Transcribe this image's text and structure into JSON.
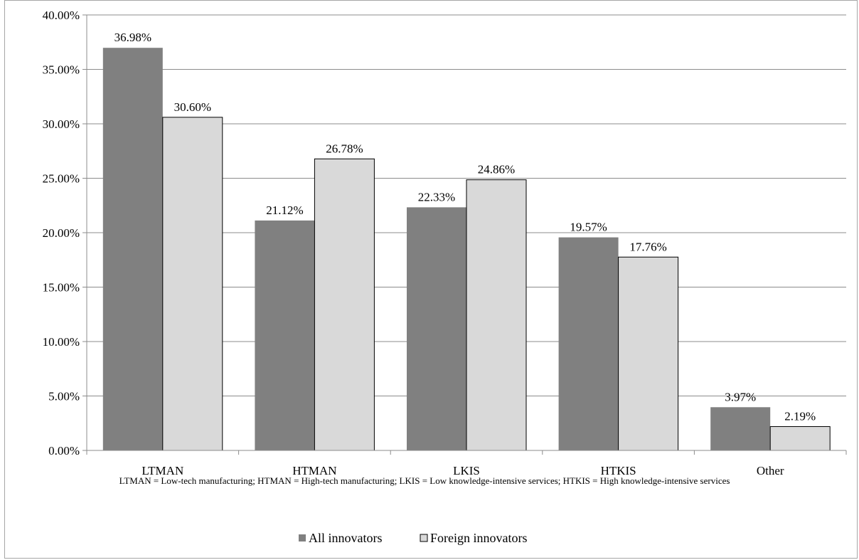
{
  "chart_data": {
    "type": "bar",
    "title": "",
    "xlabel": "",
    "ylabel": "",
    "categories": [
      "LTMAN",
      "HTMAN",
      "LKIS",
      "HTKIS",
      "Other"
    ],
    "series": [
      {
        "name": "All innovators",
        "values": [
          36.98,
          21.12,
          22.33,
          19.57,
          3.97
        ],
        "labels": [
          "36.98%",
          "21.12%",
          "22.33%",
          "19.57%",
          "3.97%"
        ],
        "color": "#808080"
      },
      {
        "name": "Foreign innovators",
        "values": [
          30.6,
          26.78,
          24.86,
          17.76,
          2.19
        ],
        "labels": [
          "30.60%",
          "26.78%",
          "24.86%",
          "17.76%",
          "2.19%"
        ],
        "color": "#d9d9d9"
      }
    ],
    "ylim": [
      0,
      40
    ],
    "yticks": [
      "0.00%",
      "5.00%",
      "10.00%",
      "15.00%",
      "20.00%",
      "25.00%",
      "30.00%",
      "35.00%",
      "40.00%"
    ],
    "grid": true,
    "legend_position": "bottom",
    "note": "LTMAN = Low-tech  manufacturing;  HTMAN = High-tech  manufacturing;  LKIS = Low knowledge-intensive  services; HTKIS  = High knowledge-intensive  services"
  }
}
